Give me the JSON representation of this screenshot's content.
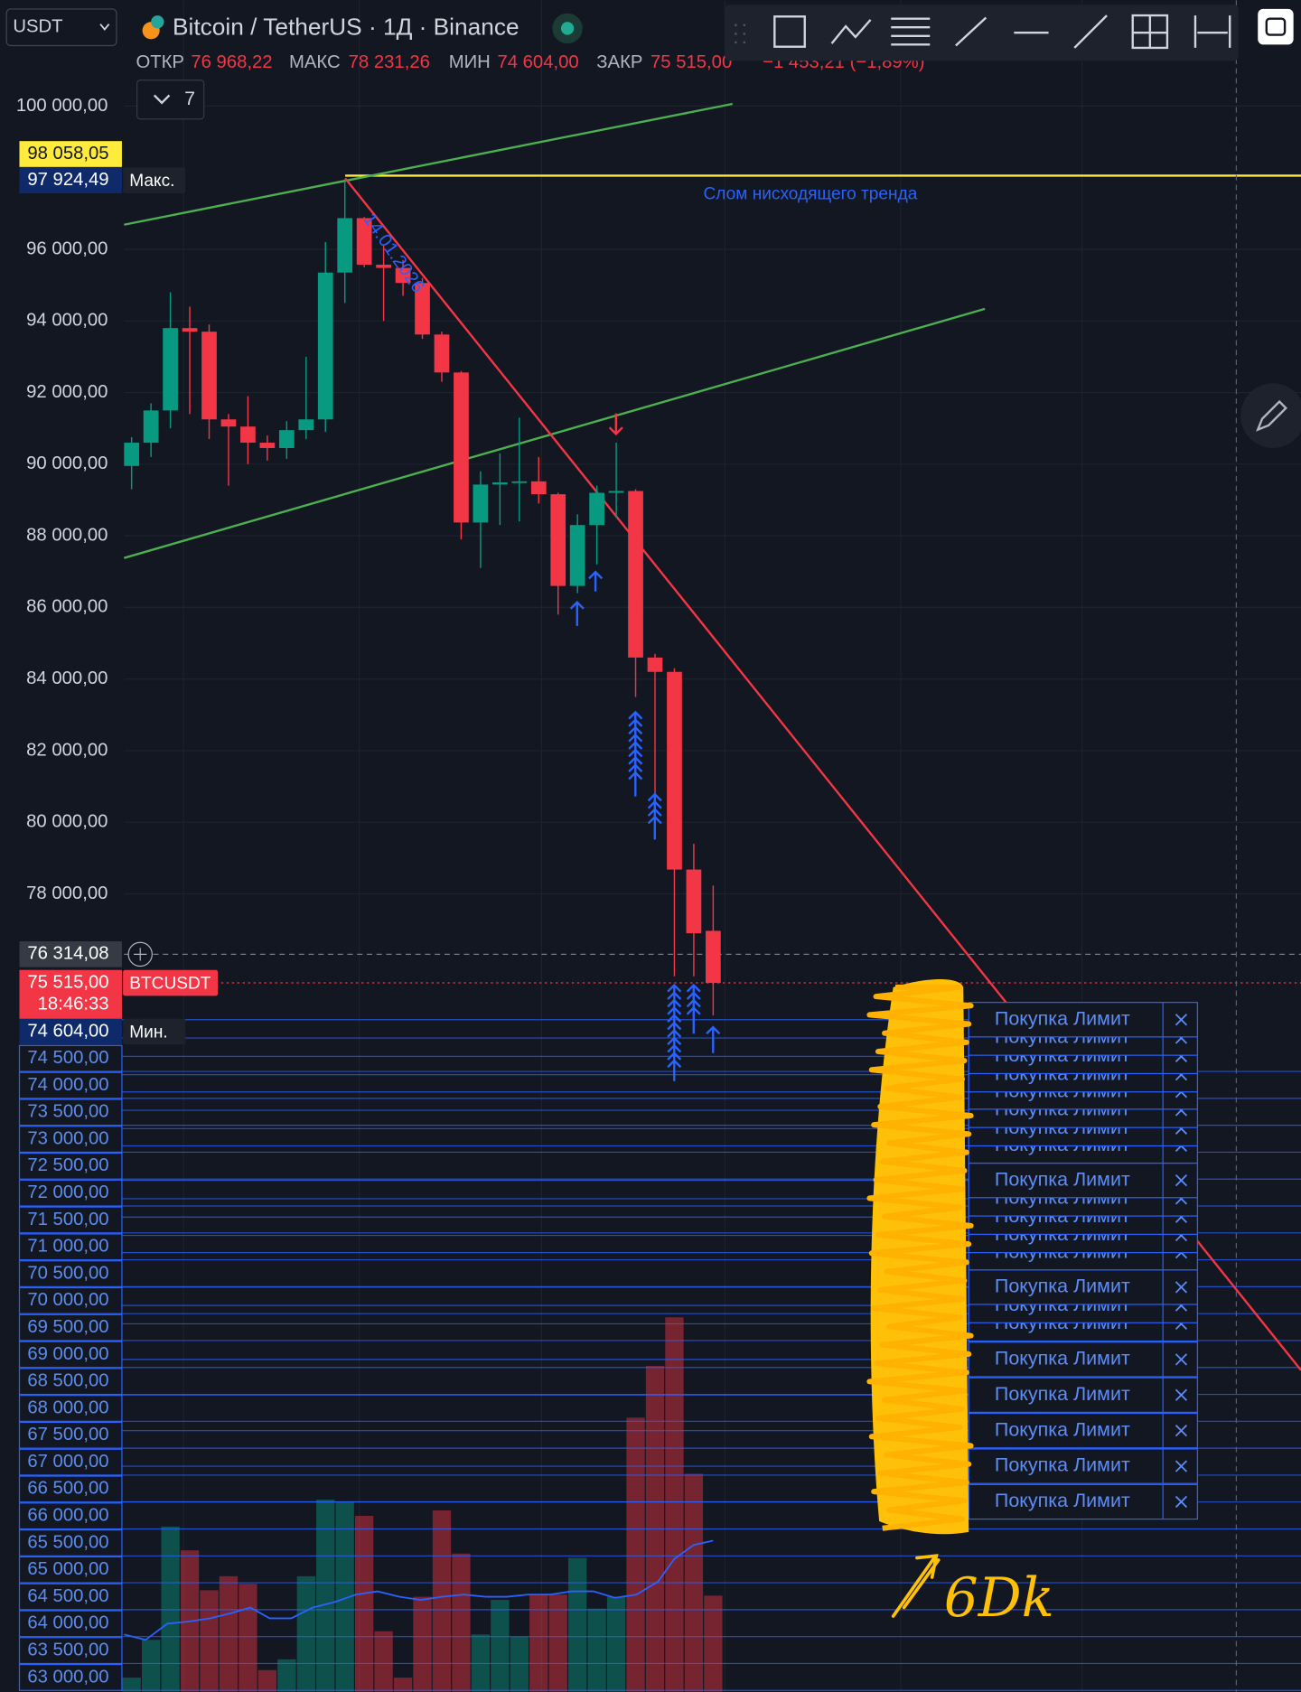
{
  "header": {
    "symbol_select": "USDT",
    "title": "Bitcoin / TetherUS · 1Д · Binance",
    "ohlc": [
      {
        "label": "ОТКР",
        "value": "76 968,22"
      },
      {
        "label": "МАКС",
        "value": "78 231,26"
      },
      {
        "label": "МИН",
        "value": "74 604,00"
      },
      {
        "label": "ЗАКР",
        "value": "75 515,00"
      }
    ],
    "change": "−1 453,21 (−1,89%)",
    "indicators_count": "7"
  },
  "chart_data": {
    "type": "candlestick",
    "up_color": "#089981",
    "down_color": "#f23645",
    "open": [
      89950,
      90600,
      91500,
      93800,
      93700,
      91250,
      91050,
      90600,
      90450,
      90950,
      91250,
      95350,
      96870,
      95570,
      95480,
      95060,
      93620,
      92560,
      88370,
      89430,
      89490,
      89520,
      89160,
      86600,
      88300,
      89200,
      89250,
      84600,
      84200,
      78680,
      76968.22
    ],
    "high": [
      90750,
      91700,
      94800,
      94400,
      93900,
      91400,
      91900,
      90800,
      91200,
      93000,
      96200,
      97924.49,
      96900,
      96100,
      95700,
      95200,
      93700,
      92600,
      89800,
      90300,
      91300,
      90200,
      89200,
      88600,
      89400,
      90600,
      89300,
      84700,
      84300,
      79400,
      78231.26
    ],
    "low": [
      89300,
      90200,
      91000,
      91400,
      90700,
      89400,
      90000,
      90100,
      90150,
      90700,
      90900,
      94500,
      95500,
      94000,
      94700,
      93500,
      92300,
      87900,
      87100,
      88300,
      88400,
      88900,
      85800,
      86400,
      87200,
      88500,
      83500,
      80600,
      75700,
      75700,
      74604.0
    ],
    "close": [
      90600,
      91500,
      93800,
      93700,
      91250,
      91050,
      90600,
      90450,
      90950,
      91250,
      95350,
      96870,
      95570,
      95480,
      95060,
      93620,
      92560,
      88370,
      89430,
      89490,
      89520,
      89160,
      86600,
      88300,
      89200,
      89250,
      84600,
      84200,
      78680,
      76900,
      75515.0
    ],
    "volume": [
      13,
      48,
      153,
      131,
      94,
      107,
      100,
      20,
      30,
      107,
      178,
      176,
      163,
      56,
      13,
      88,
      168,
      128,
      53,
      85,
      51,
      90,
      90,
      124,
      77,
      88,
      254,
      302,
      347,
      202,
      89
    ],
    "ylim": [
      55723,
      102952
    ],
    "yticks": [
      {
        "value": 100000,
        "label": "100 000,00"
      },
      {
        "value": 96000,
        "label": "96 000,00"
      },
      {
        "value": 94000,
        "label": "94 000,00"
      },
      {
        "value": 92000,
        "label": "92 000,00"
      },
      {
        "value": 90000,
        "label": "90 000,00"
      },
      {
        "value": 88000,
        "label": "88 000,00"
      },
      {
        "value": 86000,
        "label": "86 000,00"
      },
      {
        "value": 84000,
        "label": "84 000,00"
      },
      {
        "value": 82000,
        "label": "82 000,00"
      },
      {
        "value": 80000,
        "label": "80 000,00"
      },
      {
        "value": 78000,
        "label": "78 000,00"
      }
    ],
    "grid": true,
    "price_markers": [
      {
        "value": 98058.05,
        "label": "98 058,05"
      },
      {
        "value": 97924.49,
        "label": "97 924,49",
        "tag": "Макс."
      },
      {
        "value": 76314.08,
        "label": "76 314,08"
      },
      {
        "value": 75515.0,
        "label": "75 515,00",
        "tag": "BTCUSDT",
        "time": "18:46:33"
      },
      {
        "value": 74604.0,
        "label": "74 604,00",
        "tag": "Мин."
      }
    ],
    "annotations": {
      "date": "14.01.2026",
      "trend_break": "Слом нисходящего тренда",
      "handwritten": "6Dk"
    }
  },
  "order_price_labels": [
    "74 500,00",
    "74 000,00",
    "73 500,00",
    "73 000,00",
    "72 500,00",
    "72 000,00",
    "71 500,00",
    "71 000,00",
    "70 500,00",
    "70 000,00",
    "69 500,00",
    "69 000,00",
    "68 500,00",
    "68 000,00",
    "67 500,00",
    "67 000,00",
    "66 500,00",
    "66 000,00",
    "65 500,00",
    "65 000,00",
    "64 500,00",
    "64 000,00",
    "63 500,00",
    "63 000,00"
  ],
  "orders": [
    "Покупка Лимит",
    "Покупка Лимит",
    "Покупка Лимит",
    "Покупка Лимит",
    "Покупка Лимит",
    "Покупка Лимит",
    "Покупка Лимит",
    "Покупка Лимит",
    "Покупка Лимит",
    "Покупка Лимит",
    "Покупка Лимит",
    "Покупка Лимит",
    "Покупка Лимит",
    "Покупка Лимит",
    "Покупка Лимит",
    "Покупка Лимит",
    "Покупка Лимит",
    "Покупка Лимит",
    "Покупка Лимит",
    "Покупка Лимит",
    "Покупка Лимит"
  ]
}
